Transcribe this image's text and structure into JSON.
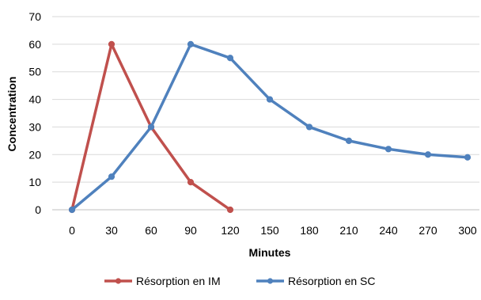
{
  "chart_data": {
    "type": "line",
    "title": "",
    "xlabel": "Minutes",
    "ylabel": "Concentration",
    "categories": [
      "0",
      "30",
      "60",
      "90",
      "120",
      "150",
      "180",
      "210",
      "240",
      "270",
      "300"
    ],
    "ylim": [
      0,
      70
    ],
    "yticks": [
      "0",
      "10",
      "20",
      "30",
      "40",
      "50",
      "60",
      "70"
    ],
    "grid": "horizontal",
    "legend_position": "bottom",
    "series": [
      {
        "name": "Résorption en IM",
        "color": "#c0504d",
        "values": [
          0,
          60,
          30,
          10,
          0,
          null,
          null,
          null,
          null,
          null,
          null
        ]
      },
      {
        "name": "Résorption en SC",
        "color": "#4f81bd",
        "values": [
          0,
          12,
          30,
          60,
          55,
          40,
          30,
          25,
          22,
          20,
          19
        ]
      }
    ]
  }
}
